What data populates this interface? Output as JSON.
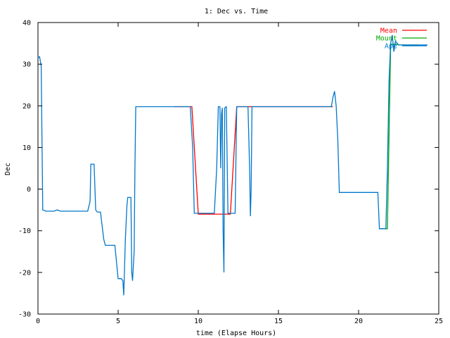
{
  "chart_data": {
    "type": "line",
    "title": "1: Dec vs. Time",
    "xlabel": "time (Elapse Hours)",
    "ylabel": "Dec",
    "xlim": [
      0,
      25
    ],
    "ylim": [
      -30,
      40
    ],
    "xticks": [
      0,
      5,
      10,
      15,
      20,
      25
    ],
    "yticks": [
      -30,
      -20,
      -10,
      0,
      10,
      20,
      30,
      40
    ],
    "grid": false,
    "legend_position": "top-right",
    "series": [
      {
        "name": "Mean",
        "color": "#ff0000",
        "points": [
          [
            8.5,
            19.8
          ],
          [
            9.6,
            19.8
          ],
          [
            10.0,
            -6.0
          ],
          [
            11.0,
            -6.0
          ],
          [
            11.5,
            -6.0
          ],
          [
            12.0,
            -6.0
          ],
          [
            12.4,
            19.8
          ],
          [
            13.3,
            19.8
          ],
          [
            13.5,
            19.8
          ],
          [
            18.4,
            19.8
          ]
        ]
      },
      {
        "name": "Mount",
        "color": "#00aa00",
        "points": [
          [
            21.3,
            -9.5
          ],
          [
            21.8,
            -9.5
          ],
          [
            22.0,
            34.8
          ],
          [
            22.4,
            34.8
          ],
          [
            22.5,
            34.6
          ],
          [
            23.7,
            34.6
          ]
        ]
      },
      {
        "name": "Ape",
        "color": "#0077cc",
        "points": [
          [
            0.0,
            31.5
          ],
          [
            0.1,
            31.8
          ],
          [
            0.2,
            29.5
          ],
          [
            0.25,
            12.0
          ],
          [
            0.3,
            -5.0
          ],
          [
            0.5,
            -5.3
          ],
          [
            1.0,
            -5.3
          ],
          [
            1.2,
            -5.0
          ],
          [
            1.4,
            -5.3
          ],
          [
            3.1,
            -5.3
          ],
          [
            3.25,
            -3.0
          ],
          [
            3.3,
            6.0
          ],
          [
            3.5,
            6.0
          ],
          [
            3.6,
            -5.0
          ],
          [
            3.7,
            -5.5
          ],
          [
            3.9,
            -5.5
          ],
          [
            4.1,
            -12.0
          ],
          [
            4.2,
            -13.5
          ],
          [
            4.8,
            -13.5
          ],
          [
            5.0,
            -21.5
          ],
          [
            5.2,
            -21.5
          ],
          [
            5.3,
            -22.0
          ],
          [
            5.35,
            -25.5
          ],
          [
            5.45,
            -12.0
          ],
          [
            5.55,
            -4.0
          ],
          [
            5.6,
            -2.0
          ],
          [
            5.8,
            -2.0
          ],
          [
            5.85,
            -20.0
          ],
          [
            5.9,
            -22.0
          ],
          [
            6.0,
            -15.0
          ],
          [
            6.05,
            5.0
          ],
          [
            6.1,
            19.8
          ],
          [
            9.5,
            19.8
          ],
          [
            9.65,
            10.0
          ],
          [
            9.75,
            -5.8
          ],
          [
            10.0,
            -5.8
          ],
          [
            11.0,
            -5.8
          ],
          [
            11.15,
            5.0
          ],
          [
            11.25,
            19.8
          ],
          [
            11.35,
            19.8
          ],
          [
            11.4,
            5.0
          ],
          [
            11.45,
            18.0
          ],
          [
            11.5,
            19.5
          ],
          [
            11.55,
            -10.0
          ],
          [
            11.6,
            -20.0
          ],
          [
            11.65,
            19.5
          ],
          [
            11.75,
            19.8
          ],
          [
            11.85,
            -5.8
          ],
          [
            12.0,
            -5.8
          ],
          [
            12.3,
            -5.8
          ],
          [
            12.4,
            19.8
          ],
          [
            13.1,
            19.8
          ],
          [
            13.2,
            5.0
          ],
          [
            13.25,
            -6.5
          ],
          [
            13.3,
            0.0
          ],
          [
            13.35,
            19.8
          ],
          [
            18.3,
            19.8
          ],
          [
            18.4,
            22.0
          ],
          [
            18.5,
            23.5
          ],
          [
            18.6,
            20.0
          ],
          [
            18.7,
            12.0
          ],
          [
            18.8,
            -0.8
          ],
          [
            19.0,
            -0.8
          ],
          [
            21.0,
            -0.8
          ],
          [
            21.2,
            -0.8
          ],
          [
            21.3,
            -9.5
          ],
          [
            21.7,
            -9.5
          ],
          [
            21.8,
            5.0
          ],
          [
            21.9,
            26.0
          ],
          [
            22.0,
            35.0
          ],
          [
            22.1,
            37.0
          ],
          [
            22.2,
            33.0
          ],
          [
            22.3,
            35.5
          ],
          [
            22.5,
            34.6
          ],
          [
            23.5,
            34.6
          ],
          [
            24.0,
            34.6
          ],
          [
            24.3,
            34.6
          ]
        ]
      }
    ]
  }
}
